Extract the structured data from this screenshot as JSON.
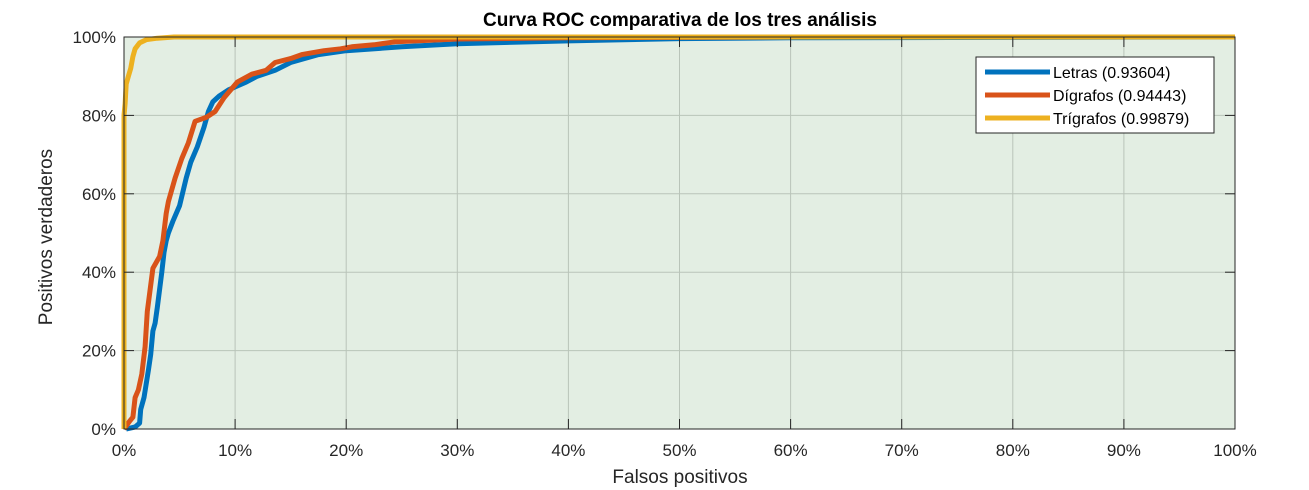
{
  "chart_data": {
    "type": "line",
    "title": "Curva ROC comparativa de los tres análisis",
    "xlabel": "Falsos positivos",
    "ylabel": "Positivos verdaderos",
    "xlim": [
      0,
      100
    ],
    "ylim": [
      0,
      100
    ],
    "x_ticks": [
      "0%",
      "10%",
      "20%",
      "30%",
      "40%",
      "50%",
      "60%",
      "70%",
      "80%",
      "90%",
      "100%"
    ],
    "y_ticks": [
      "0%",
      "20%",
      "40%",
      "60%",
      "80%",
      "100%"
    ],
    "x_tick_values": [
      0,
      10,
      20,
      30,
      40,
      50,
      60,
      70,
      80,
      90,
      100
    ],
    "y_tick_values": [
      0,
      20,
      40,
      60,
      80,
      100
    ],
    "grid": true,
    "legend_position": "top-right",
    "background_color": "#e3eee3",
    "series": [
      {
        "name": "Letras (0.93604)",
        "color": "#0072bd",
        "x": [
          0.2,
          1.0,
          1.4,
          1.5,
          1.8,
          2.2,
          2.4,
          2.6,
          2.8,
          3.0,
          3.4,
          3.6,
          3.8,
          4.0,
          4.4,
          5.0,
          5.6,
          6.0,
          6.6,
          7.2,
          7.6,
          8.0,
          8.6,
          9.4,
          10.2,
          11.0,
          12.0,
          13.6,
          15.0,
          17.5,
          20.0,
          25.0,
          30.0,
          40.0,
          50.0,
          60.0,
          80.0,
          100.0
        ],
        "y": [
          0,
          0.5,
          1.5,
          5,
          8,
          15,
          19,
          25,
          27,
          31,
          40,
          45,
          48,
          50,
          53,
          57,
          64,
          68,
          72,
          77,
          81,
          83.5,
          85,
          86.5,
          87.5,
          88.5,
          90,
          91.5,
          93.5,
          95.5,
          96.5,
          97.5,
          98.3,
          99.0,
          99.6,
          99.8,
          99.9,
          100
        ]
      },
      {
        "name": "Dígrafos (0.94443)",
        "color": "#d95319",
        "x": [
          0,
          0.5,
          0.8,
          1.0,
          1.3,
          1.6,
          1.9,
          2.1,
          2.6,
          3.2,
          3.5,
          3.8,
          4.0,
          4.6,
          5.2,
          5.8,
          6.4,
          7.4,
          8.2,
          9.0,
          10.2,
          11.5,
          12.8,
          13.6,
          15.0,
          16.0,
          18.0,
          19.5,
          20.5,
          22.5,
          24.5,
          30.0,
          40.0,
          60.0,
          100.0
        ],
        "y": [
          0,
          2,
          3,
          8,
          10,
          14,
          21,
          30,
          41,
          44,
          48,
          55,
          58,
          64,
          69,
          73,
          78.5,
          79.5,
          81,
          84.5,
          88.5,
          90.5,
          91.5,
          93.5,
          94.5,
          95.5,
          96.5,
          97.0,
          97.5,
          98.0,
          98.8,
          99.5,
          99.8,
          100,
          100
        ]
      },
      {
        "name": "Trígrafos (0.99879)",
        "color": "#edb120",
        "x": [
          0,
          0,
          0.1,
          0.2,
          0.4,
          0.6,
          0.8,
          1.0,
          1.4,
          2.0,
          3.0,
          4.5,
          100.0
        ],
        "y": [
          0,
          80,
          83,
          88,
          90,
          92,
          95,
          97,
          98.5,
          99.3,
          99.7,
          100,
          100
        ]
      }
    ]
  }
}
